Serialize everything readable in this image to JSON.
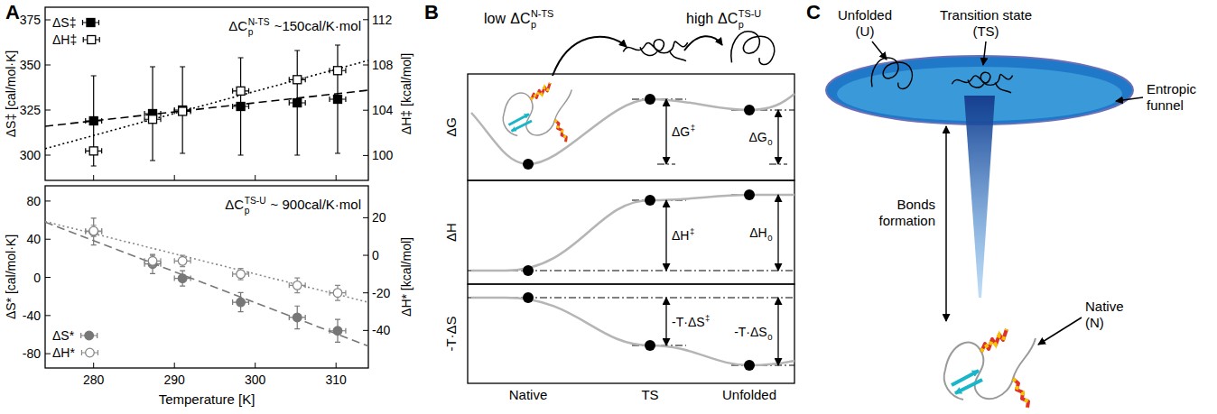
{
  "panel_labels": [
    "A",
    "B",
    "C"
  ],
  "chart_data": [
    {
      "type": "scatter",
      "annotation": {
        "base": "ΔC",
        "sub": "p",
        "sup": "N-TS",
        "suffix": "~150cal/K·mol"
      },
      "xlim": [
        274,
        314
      ],
      "xticks": [
        280,
        290,
        300,
        310
      ],
      "ylim": [
        286,
        382
      ],
      "yticks": [
        300,
        325,
        350,
        375
      ],
      "y_label": "ΔS‡ [cal/mol·K]",
      "y2lim": [
        97.8,
        113.1
      ],
      "y2ticks": [
        100,
        104,
        108,
        112
      ],
      "y2_label": "ΔH‡ [kcal/mol]",
      "tick_labels": "y",
      "grid": false,
      "legend": "upper left",
      "series": [
        {
          "name": "ΔS‡",
          "color": "#000000",
          "marker": "square",
          "x": [
            280,
            287.3,
            291,
            298.2,
            305.2,
            310.2
          ],
          "x_errors": [
            1,
            1,
            1,
            1,
            1,
            1
          ],
          "values": [
            319,
            323,
            325,
            327,
            329,
            331
          ],
          "errors": [
            25,
            26,
            24,
            27,
            29,
            30
          ]
        },
        {
          "name": "ΔH‡",
          "color": "#000000",
          "marker": "open-square",
          "axis": "y2",
          "x": [
            280,
            287.3,
            291,
            298.2,
            305.2,
            310.2
          ],
          "x_errors": [
            1,
            1,
            1,
            1,
            1,
            1
          ],
          "values": [
            100.4,
            103.2,
            103.9,
            105.7,
            106.7,
            107.5
          ],
          "errors": [
            0.3,
            0.3,
            0.3,
            0.3,
            0.3,
            0.3
          ]
        },
        {
          "type": "line",
          "color": "#000000",
          "line_style": "dashed",
          "x": [
            274,
            314
          ],
          "values": [
            316,
            336
          ]
        },
        {
          "type": "line",
          "color": "#000000",
          "line_style": "dotted",
          "axis": "y2",
          "x": [
            274,
            314
          ],
          "values": [
            100.6,
            108.4
          ]
        }
      ]
    },
    {
      "type": "scatter",
      "annotation": {
        "base": "ΔC",
        "sub": "p",
        "sup": "TS-U",
        "suffix": "~ 900cal/K·mol"
      },
      "x_label": "Temperature [K]",
      "xlim": [
        274,
        314
      ],
      "xticks": [
        280,
        290,
        300,
        310
      ],
      "ylim": [
        -95,
        96
      ],
      "yticks": [
        -80,
        -40,
        0,
        40,
        80
      ],
      "y_label": "ΔS* [cal/mol·K]",
      "y2lim": [
        -60,
        37
      ],
      "y2ticks": [
        -40,
        -20,
        0,
        20
      ],
      "y2_label": "ΔH* [kcal/mol]",
      "tick_labels": true,
      "grid": false,
      "legend": "lower left",
      "series": [
        {
          "name": "ΔS*",
          "color": "#777777",
          "marker": "circle",
          "x": [
            280,
            287.3,
            291,
            298.2,
            305.2,
            310.2
          ],
          "x_errors": [
            1,
            1,
            1,
            1,
            1,
            1
          ],
          "values": [
            48,
            14,
            -1,
            -26,
            -42,
            -56
          ],
          "errors": [
            14,
            10,
            8,
            10,
            12,
            12
          ]
        },
        {
          "name": "ΔH*",
          "color": "#888888",
          "marker": "open-circle",
          "axis": "y2",
          "x": [
            280,
            287.3,
            291,
            298.2,
            305.2,
            310.2
          ],
          "x_errors": [
            1,
            1,
            1,
            1,
            1,
            1
          ],
          "values": [
            13,
            -3,
            -3,
            -10,
            -16,
            -20
          ],
          "errors": [
            3,
            3,
            3,
            3,
            4,
            4
          ]
        },
        {
          "type": "line",
          "color": "#777777",
          "line_style": "dashed",
          "x": [
            274,
            314
          ],
          "values": [
            58,
            -72
          ]
        },
        {
          "type": "line",
          "color": "#888888",
          "line_style": "dotted",
          "axis": "y2",
          "x": [
            274,
            314
          ],
          "values": [
            18,
            -25
          ]
        }
      ]
    }
  ],
  "energy_diagram": {
    "transitions": [
      {
        "prefix": "low",
        "base": "ΔC",
        "sub": "p",
        "sup": "N-TS"
      },
      {
        "prefix": "high",
        "base": "ΔC",
        "sub": "p",
        "sup": "TS-U"
      }
    ],
    "rows": [
      {
        "axis_label": "ΔG",
        "barrier": {
          "base": "ΔG",
          "sup": "‡"
        },
        "difference": {
          "base": "ΔG",
          "sub": "0"
        }
      },
      {
        "axis_label": "ΔH",
        "barrier": {
          "base": "ΔH",
          "sup": "‡"
        },
        "difference": {
          "base": "ΔH",
          "sub": "0"
        }
      },
      {
        "axis_label": "-T·ΔS",
        "barrier": {
          "base": "-T·ΔS",
          "sup": "‡"
        },
        "difference": {
          "base": "-T·ΔS",
          "sub": "0"
        }
      }
    ],
    "states": [
      "Native",
      "TS",
      "Unfolded"
    ]
  },
  "funnel_diagram": {
    "unfolded": [
      "Unfolded",
      "(U)"
    ],
    "transition_state": [
      "Transition state",
      "(TS)"
    ],
    "funnel": [
      "Entropic",
      "funnel"
    ],
    "bonds": [
      "Bonds",
      "formation"
    ],
    "native": [
      "Native",
      "(N)"
    ]
  }
}
